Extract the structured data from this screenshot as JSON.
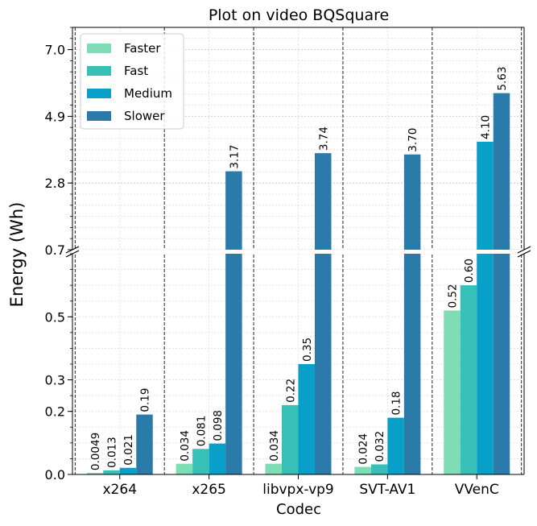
{
  "chart_data": {
    "type": "bar",
    "title": "Plot on video BQSquare",
    "xlabel": "Codec",
    "ylabel": "Energy (Wh)",
    "categories": [
      "x264",
      "x265",
      "libvpx-vp9",
      "SVT-AV1",
      "VVenC"
    ],
    "series": [
      {
        "name": "Faster",
        "color": "#7fddb6",
        "values": [
          0.0049,
          0.034,
          0.034,
          0.024,
          0.52
        ],
        "labels": [
          "0.0049",
          "0.034",
          "0.034",
          "0.024",
          "0.52"
        ]
      },
      {
        "name": "Fast",
        "color": "#36c0b8",
        "values": [
          0.013,
          0.081,
          0.22,
          0.032,
          0.6
        ],
        "labels": [
          "0.013",
          "0.081",
          "0.22",
          "0.032",
          "0.60"
        ]
      },
      {
        "name": "Medium",
        "color": "#08a0c8",
        "values": [
          0.021,
          0.098,
          0.35,
          0.18,
          4.1
        ],
        "labels": [
          "0.021",
          "0.098",
          "0.35",
          "0.18",
          "4.10"
        ]
      },
      {
        "name": "Slower",
        "color": "#2a7aaa",
        "values": [
          0.19,
          3.17,
          3.74,
          3.7,
          5.63
        ],
        "labels": [
          "0.19",
          "3.17",
          "3.74",
          "3.70",
          "5.63"
        ]
      }
    ],
    "axis_break": true,
    "y_lower": {
      "range": [
        0,
        0.7
      ],
      "ticks": [
        0.0,
        0.2,
        0.3,
        0.5,
        0.7
      ],
      "tick_labels": [
        "0.0",
        "0.2",
        "0.3",
        "0.5",
        "0.7"
      ]
    },
    "y_upper": {
      "range": [
        0.7,
        7.7
      ],
      "ticks": [
        0.7,
        2.8,
        4.9,
        7.0
      ],
      "tick_labels": [
        "0.7",
        "2.8",
        "4.9",
        "7.0"
      ]
    },
    "grid": true,
    "legend": {
      "placement": "top-left"
    },
    "group_separators": "dashed"
  }
}
